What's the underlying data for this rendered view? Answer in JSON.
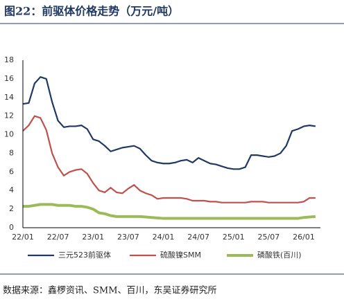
{
  "chart_data": {
    "type": "line",
    "title": "图22：前驱体价格走势（万元/吨）",
    "source": "数据来源：鑫椤资讯、SMM、百川，东吴证券研究所",
    "categories": [
      "22/01",
      null,
      null,
      null,
      null,
      null,
      "22/07",
      null,
      null,
      null,
      null,
      null,
      "23/01",
      null,
      null,
      null,
      null,
      null,
      "23/07",
      null,
      null,
      null,
      null,
      null,
      "24/01",
      null,
      null,
      null,
      null,
      null,
      "24/07",
      null,
      null,
      null,
      null,
      null,
      "25/01",
      null,
      null,
      null,
      null,
      null,
      "25/07",
      null,
      null,
      null,
      null,
      null,
      "26/01",
      null,
      null
    ],
    "ylim": [
      0,
      18
    ],
    "yticks": [
      0,
      2,
      4,
      6,
      8,
      10,
      12,
      14,
      16,
      18
    ],
    "series": [
      {
        "name": "三元523前驱体",
        "color": "#203864",
        "width": 2.2,
        "values": [
          13.3,
          13.4,
          15.5,
          16.2,
          16.0,
          13.5,
          11.5,
          10.8,
          10.9,
          10.9,
          11.0,
          10.6,
          9.5,
          9.3,
          8.8,
          8.2,
          8.4,
          8.6,
          8.7,
          8.8,
          8.5,
          7.8,
          7.2,
          7.0,
          6.9,
          6.9,
          7.0,
          7.2,
          7.3,
          7.0,
          7.5,
          7.2,
          6.9,
          6.8,
          6.6,
          6.4,
          6.3,
          6.3,
          6.5,
          7.8,
          7.8,
          7.7,
          7.6,
          7.7,
          8.0,
          8.8,
          10.4,
          10.6,
          10.9,
          11.0,
          10.9
        ]
      },
      {
        "name": "硫酸镍SMM",
        "color": "#c0504d",
        "width": 2.2,
        "values": [
          10.4,
          11.0,
          12.0,
          11.8,
          10.5,
          8.0,
          6.5,
          5.6,
          6.0,
          6.2,
          6.3,
          5.8,
          4.8,
          4.0,
          3.8,
          4.3,
          3.8,
          3.7,
          4.2,
          4.6,
          4.0,
          3.7,
          3.5,
          3.1,
          3.2,
          3.2,
          3.2,
          3.2,
          3.1,
          2.9,
          2.9,
          2.9,
          2.8,
          2.8,
          2.7,
          2.7,
          2.7,
          2.7,
          2.7,
          2.8,
          2.8,
          2.8,
          2.7,
          2.7,
          2.7,
          2.7,
          2.7,
          2.7,
          2.8,
          3.2,
          3.2
        ]
      },
      {
        "name": "磷酸铁(百川)",
        "color": "#9bbb59",
        "width": 4,
        "values": [
          2.3,
          2.3,
          2.4,
          2.5,
          2.5,
          2.5,
          2.4,
          2.4,
          2.4,
          2.3,
          2.3,
          2.2,
          2.0,
          1.6,
          1.5,
          1.3,
          1.2,
          1.2,
          1.2,
          1.2,
          1.2,
          1.15,
          1.1,
          1.05,
          1.0,
          1.0,
          1.0,
          1.0,
          1.0,
          1.0,
          1.0,
          1.0,
          1.0,
          1.0,
          1.0,
          1.0,
          1.0,
          1.0,
          1.0,
          1.0,
          1.0,
          1.0,
          1.0,
          1.0,
          1.0,
          1.0,
          1.0,
          1.0,
          1.1,
          1.15,
          1.2
        ]
      }
    ]
  }
}
